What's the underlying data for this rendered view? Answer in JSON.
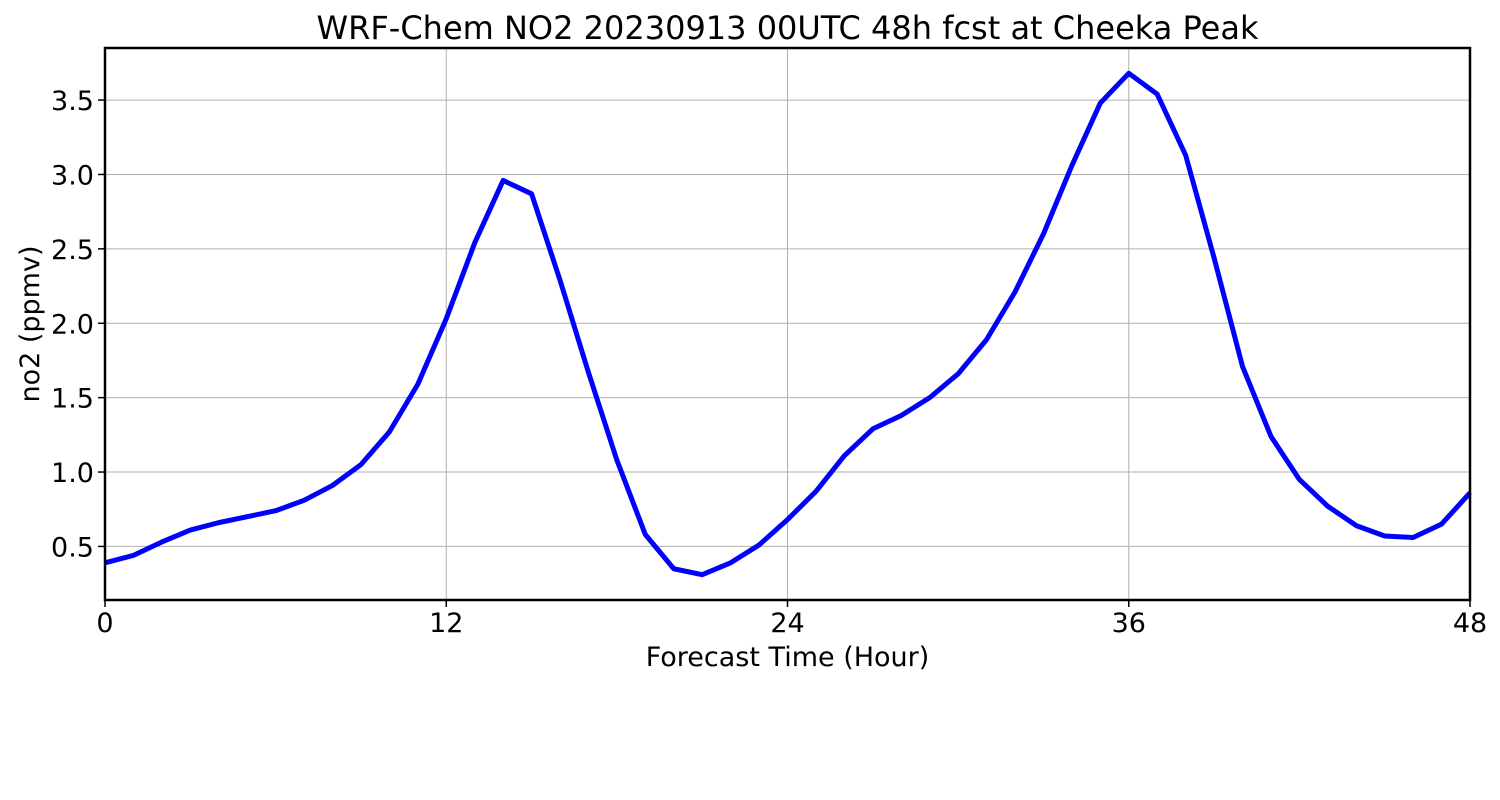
{
  "chart_data": {
    "type": "line",
    "title": "WRF-Chem NO2  20230913 00UTC 48h fcst at Cheeka Peak",
    "xlabel": "Forecast Time (Hour)",
    "ylabel": "no2  (ppmv)",
    "xlim": [
      0,
      48
    ],
    "ylim": [
      0.14,
      3.85
    ],
    "xticks": [
      0,
      12,
      24,
      36,
      48
    ],
    "xtick_labels": [
      "0",
      "12",
      "24",
      "36",
      "48"
    ],
    "yticks": [
      0.5,
      1.0,
      1.5,
      2.0,
      2.5,
      3.0,
      3.5
    ],
    "ytick_labels": [
      "0.5",
      "1.0",
      "1.5",
      "2.0",
      "2.5",
      "3.0",
      "3.5"
    ],
    "grid": true,
    "legend": "none",
    "series": [
      {
        "color": "#0000ff",
        "x": [
          0,
          1,
          2,
          3,
          4,
          5,
          6,
          7,
          8,
          9,
          10,
          11,
          12,
          13,
          14,
          15,
          16,
          17,
          18,
          19,
          20,
          21,
          22,
          23,
          24,
          25,
          26,
          27,
          28,
          29,
          30,
          31,
          32,
          33,
          34,
          35,
          36,
          37,
          38,
          39,
          40,
          41,
          42,
          43,
          44,
          45,
          46,
          47,
          48
        ],
        "y": [
          0.39,
          0.44,
          0.53,
          0.61,
          0.66,
          0.7,
          0.74,
          0.81,
          0.91,
          1.05,
          1.27,
          1.59,
          2.03,
          2.54,
          2.96,
          2.87,
          2.29,
          1.67,
          1.08,
          0.58,
          0.35,
          0.31,
          0.39,
          0.51,
          0.68,
          0.87,
          1.11,
          1.29,
          1.38,
          1.5,
          1.66,
          1.89,
          2.21,
          2.6,
          3.06,
          3.48,
          3.68,
          3.54,
          3.13,
          2.44,
          1.71,
          1.24,
          0.95,
          0.77,
          0.64,
          0.57,
          0.56,
          0.65,
          0.86
        ]
      }
    ]
  }
}
